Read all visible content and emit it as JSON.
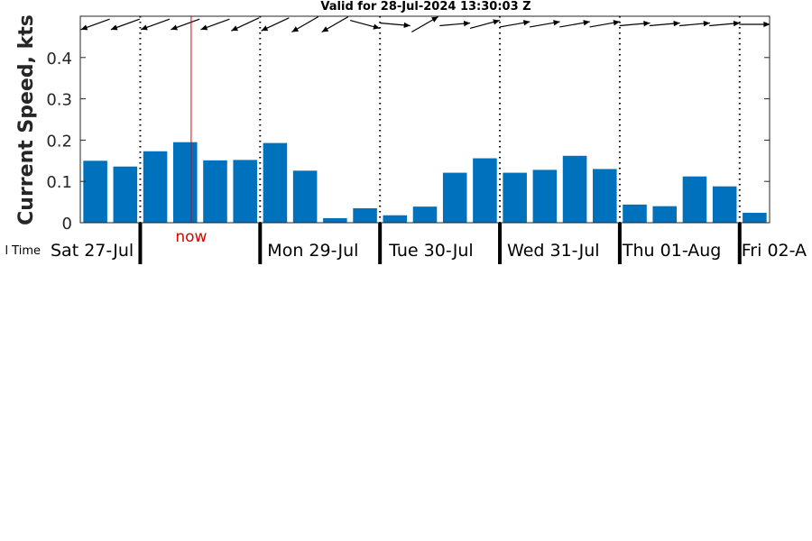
{
  "chart_data": {
    "type": "bar",
    "title": "Valid for 28-Jul-2024 13:30:03 Z",
    "ylabel": "Current Speed, kts",
    "xlabel": "l Time",
    "ylim": [
      0,
      0.5
    ],
    "yticks": [
      "0",
      "0.1",
      "0.2",
      "0.3",
      "0.4"
    ],
    "ytick_values": [
      0,
      0.1,
      0.2,
      0.3,
      0.4
    ],
    "bar_color": "#0072bd",
    "day_labels": [
      "Sat 27-Jul",
      "Mon 29-Jul",
      "Tue 30-Jul",
      "Wed 31-Jul",
      "Thu 01-Aug",
      "Fri 02-A"
    ],
    "now_label": "now",
    "now_index": 3.2,
    "values": [
      0.15,
      0.136,
      0.173,
      0.195,
      0.151,
      0.152,
      0.193,
      0.126,
      0.011,
      0.035,
      0.018,
      0.039,
      0.121,
      0.156,
      0.121,
      0.128,
      0.162,
      0.13,
      0.044,
      0.04,
      0.112,
      0.088,
      0.024
    ],
    "direction_degrees": [
      250,
      250,
      250,
      250,
      250,
      245,
      245,
      240,
      240,
      105,
      95,
      60,
      85,
      75,
      80,
      80,
      80,
      80,
      85,
      85,
      85,
      85,
      90
    ],
    "day_boundaries": [
      1.5,
      5.5,
      9.5,
      13.5,
      17.5,
      21.5
    ],
    "grid": false
  }
}
